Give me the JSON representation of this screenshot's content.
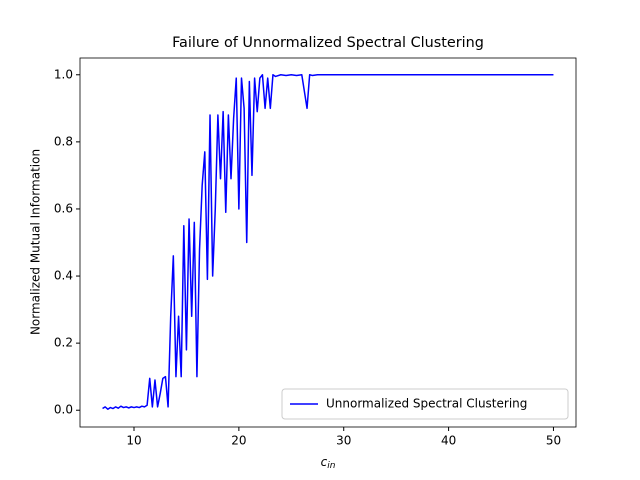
{
  "chart_data": {
    "type": "line",
    "title": "Failure of Unnormalized Spectral Clustering",
    "xlabel": {
      "base": "c",
      "sub": "in"
    },
    "ylabel": "Normalized Mutual Information",
    "xlim": [
      4.85,
      52.15
    ],
    "ylim": [
      -0.05,
      1.05
    ],
    "xticks": [
      10,
      20,
      30,
      40,
      50
    ],
    "yticks": [
      {
        "value": 0,
        "label": "0.0"
      },
      {
        "value": 0.2,
        "label": "0.2"
      },
      {
        "value": 0.4,
        "label": "0.4"
      },
      {
        "value": 0.6,
        "label": "0.6"
      },
      {
        "value": 0.8,
        "label": "0.8"
      },
      {
        "value": 1,
        "label": "1.0"
      }
    ],
    "grid": false,
    "legend": "lower right",
    "x": [
      7.0,
      7.25,
      7.5,
      7.75,
      8.0,
      8.25,
      8.5,
      8.75,
      9.0,
      9.25,
      9.5,
      9.75,
      10.0,
      10.25,
      10.5,
      10.75,
      11.0,
      11.25,
      11.5,
      11.75,
      12.0,
      12.25,
      12.5,
      12.75,
      13.0,
      13.25,
      13.5,
      13.75,
      14.0,
      14.25,
      14.5,
      14.75,
      15.0,
      15.25,
      15.5,
      15.75,
      16.0,
      16.25,
      16.5,
      16.75,
      17.0,
      17.25,
      17.5,
      17.75,
      18.0,
      18.25,
      18.5,
      18.75,
      19.0,
      19.25,
      19.5,
      19.75,
      20.0,
      20.25,
      20.5,
      20.75,
      21.0,
      21.25,
      21.5,
      21.75,
      22.0,
      22.25,
      22.5,
      22.75,
      23.0,
      23.25,
      23.5,
      24.0,
      24.5,
      25.0,
      25.5,
      26.0,
      26.5,
      26.75,
      27.0,
      27.5,
      28.0,
      30.0,
      32.0,
      35.0,
      40.0,
      45.0,
      50.0
    ],
    "series": [
      {
        "name": "Unnormalized Spectral Clustering",
        "color": "#0000ff",
        "values": [
          0.005,
          0.01,
          0.003,
          0.008,
          0.005,
          0.01,
          0.006,
          0.012,
          0.008,
          0.01,
          0.007,
          0.01,
          0.008,
          0.01,
          0.008,
          0.012,
          0.01,
          0.015,
          0.095,
          0.01,
          0.09,
          0.01,
          0.05,
          0.095,
          0.1,
          0.01,
          0.28,
          0.46,
          0.1,
          0.28,
          0.1,
          0.55,
          0.18,
          0.57,
          0.28,
          0.56,
          0.1,
          0.48,
          0.67,
          0.77,
          0.39,
          0.88,
          0.4,
          0.6,
          0.88,
          0.69,
          0.89,
          0.59,
          0.88,
          0.69,
          0.87,
          0.99,
          0.6,
          0.99,
          0.9,
          0.5,
          0.98,
          0.7,
          0.99,
          0.89,
          0.99,
          1.0,
          0.9,
          0.99,
          0.9,
          1.0,
          0.995,
          1.0,
          0.998,
          1.0,
          0.998,
          1.0,
          0.9,
          1.0,
          0.998,
          1.0,
          1.0,
          1.0,
          1.0,
          1.0,
          1.0,
          1.0,
          1.0
        ]
      }
    ]
  }
}
